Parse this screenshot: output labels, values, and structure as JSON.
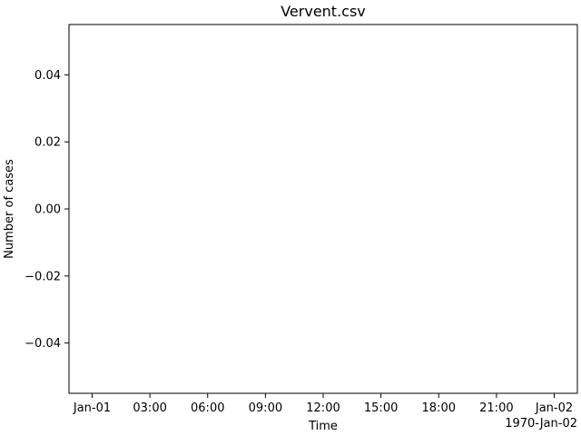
{
  "chart_data": {
    "type": "line",
    "title": "Vervent.csv",
    "xlabel": "Time",
    "ylabel": "Number of cases",
    "x_offset_label": "1970-Jan-02",
    "series": [],
    "x_ticks": [
      "Jan-01",
      "03:00",
      "06:00",
      "09:00",
      "12:00",
      "15:00",
      "18:00",
      "21:00",
      "Jan-02"
    ],
    "y_ticks": [
      "0.04",
      "0.02",
      "0.00",
      "−0.02",
      "−0.04"
    ],
    "y_tick_values": [
      0.04,
      0.02,
      0.0,
      -0.02,
      -0.04
    ],
    "ylim": [
      -0.055,
      0.055
    ],
    "grid": false,
    "colors": {
      "axes": "#000000",
      "background": "#ffffff"
    }
  }
}
